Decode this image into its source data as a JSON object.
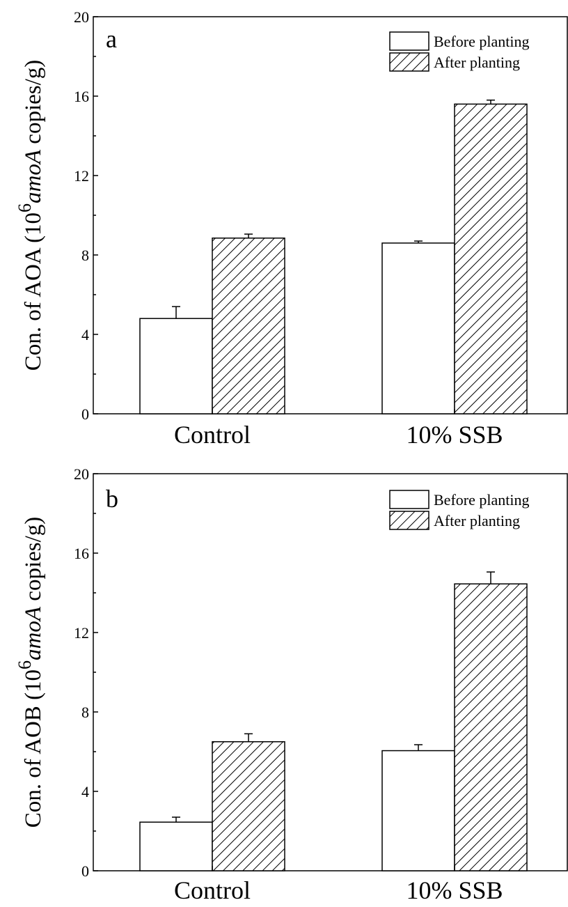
{
  "chart_data": [
    {
      "type": "bar",
      "panel_label": "a",
      "categories": [
        "Control",
        "10% SSB"
      ],
      "ylabel_prefix": "Con. of AOA (10",
      "ylabel_sup": "6",
      "ylabel_italic": "amoA",
      "ylabel_suffix": " copies/g)",
      "ylim": [
        0,
        20
      ],
      "yticks": [
        "0",
        "4",
        "8",
        "12",
        "16",
        "20"
      ],
      "legend_position": "top-right",
      "series": [
        {
          "name": "Before planting",
          "pattern": "open",
          "values": [
            4.8,
            8.6
          ],
          "errors": [
            0.6,
            0.1
          ]
        },
        {
          "name": "After planting",
          "pattern": "hatched",
          "values": [
            8.85,
            15.6
          ],
          "errors": [
            0.2,
            0.2
          ]
        }
      ]
    },
    {
      "type": "bar",
      "panel_label": "b",
      "categories": [
        "Control",
        "10% SSB"
      ],
      "ylabel_prefix": "Con. of AOB (10",
      "ylabel_sup": "6",
      "ylabel_italic": "amoA",
      "ylabel_suffix": " copies/g)",
      "ylim": [
        0,
        20
      ],
      "yticks": [
        "0",
        "4",
        "8",
        "12",
        "16",
        "20"
      ],
      "legend_position": "top-right",
      "series": [
        {
          "name": "Before planting",
          "pattern": "open",
          "values": [
            2.45,
            6.05
          ],
          "errors": [
            0.25,
            0.3
          ]
        },
        {
          "name": "After planting",
          "pattern": "hatched",
          "values": [
            6.5,
            14.45
          ],
          "errors": [
            0.4,
            0.6
          ]
        }
      ]
    }
  ]
}
